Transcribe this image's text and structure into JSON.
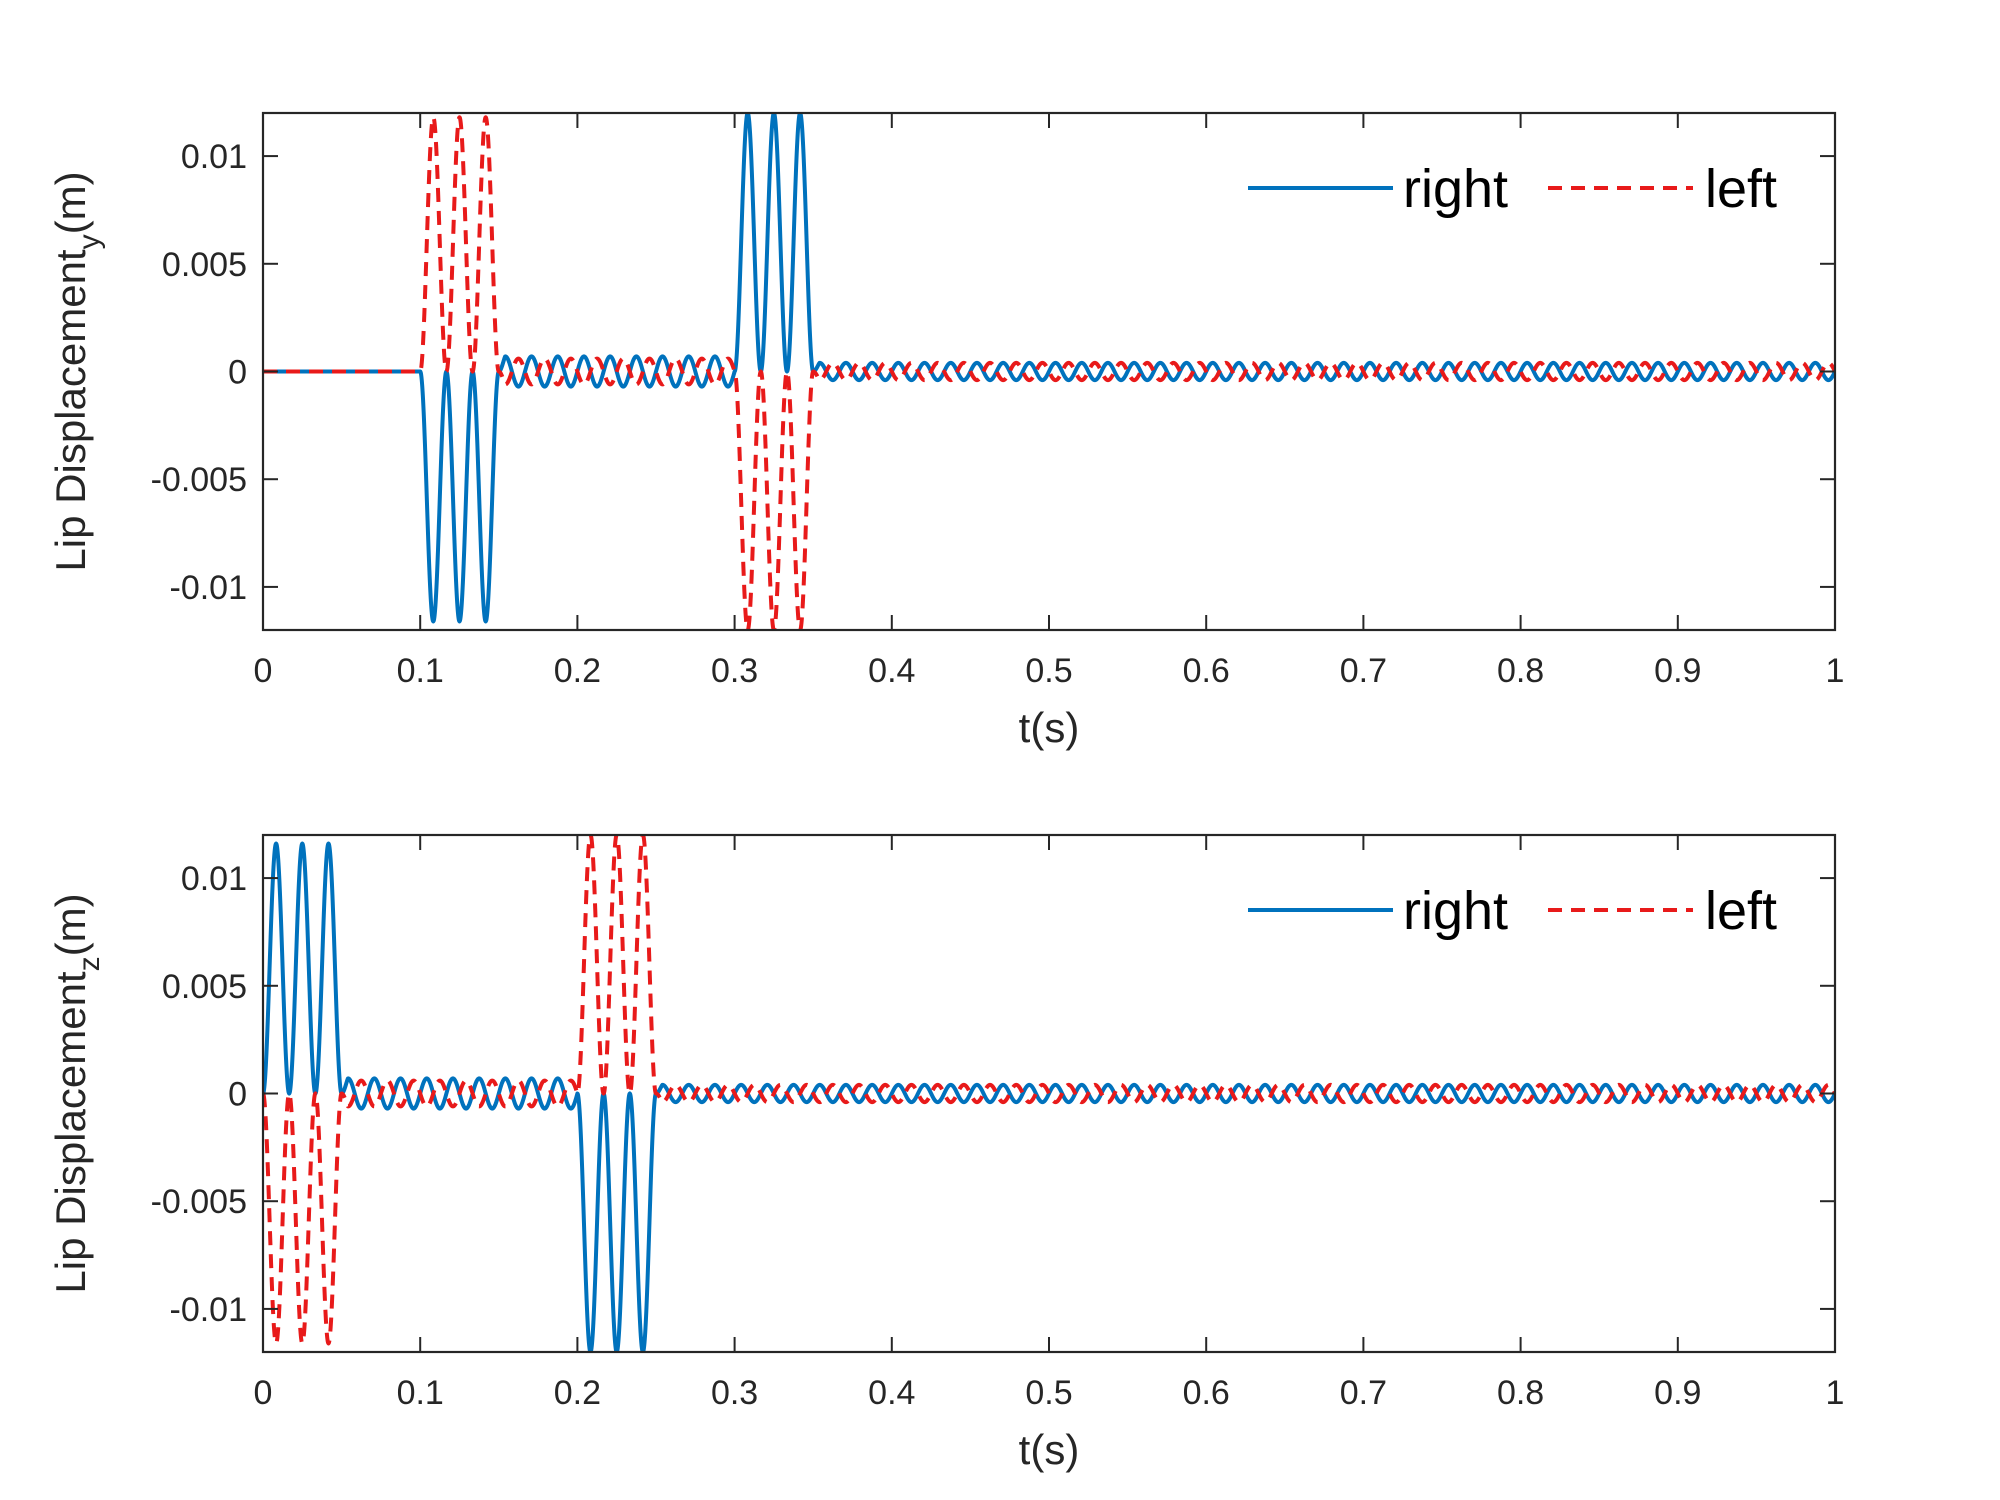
{
  "chart_data": [
    {
      "type": "line",
      "xlabel": "t(s)",
      "ylabel_main": "Lip Displacement",
      "ylabel_sub": "y",
      "ylabel_unit": "(m)",
      "xlim": [
        0,
        1
      ],
      "ylim": [
        -0.012,
        0.012
      ],
      "xticks": [
        0,
        0.1,
        0.2,
        0.3,
        0.4,
        0.5,
        0.6,
        0.7,
        0.8,
        0.9,
        1
      ],
      "xtick_labels": [
        "0",
        "0.1",
        "0.2",
        "0.3",
        "0.4",
        "0.5",
        "0.6",
        "0.7",
        "0.8",
        "0.9",
        "1"
      ],
      "yticks": [
        -0.01,
        -0.005,
        0,
        0.005,
        0.01
      ],
      "ytick_labels": [
        "-0.01",
        "-0.005",
        "0",
        "0.005",
        "0.01"
      ],
      "grid": false,
      "legend": {
        "position": "top-right",
        "orientation": "horizontal"
      },
      "series": [
        {
          "name": "right",
          "color": "#0072BD",
          "style": "solid",
          "segments": [
            {
              "t": [
                0,
                0.1
              ],
              "kind": "flat",
              "value": 0
            },
            {
              "t": [
                0.1,
                0.15
              ],
              "kind": "burst",
              "sign": -1,
              "cycles": 3,
              "amplitude": 0.0116
            },
            {
              "t": [
                0.15,
                0.3
              ],
              "kind": "oscillation",
              "freq_hz": 60,
              "amplitude": 0.0007,
              "phase_cycles": 0
            },
            {
              "t": [
                0.3,
                0.35
              ],
              "kind": "burst",
              "sign": 1,
              "cycles": 3,
              "amplitude": 0.012
            },
            {
              "t": [
                0.35,
                1.0
              ],
              "kind": "oscillation",
              "freq_hz": 60,
              "amplitude": 0.0004,
              "phase_cycles": 0
            }
          ]
        },
        {
          "name": "left",
          "color": "#E81A1A",
          "style": "dashed",
          "segments": [
            {
              "t": [
                0,
                0.1
              ],
              "kind": "flat",
              "value": 0
            },
            {
              "t": [
                0.1,
                0.15
              ],
              "kind": "burst",
              "sign": 1,
              "cycles": 3,
              "amplitude": 0.0118
            },
            {
              "t": [
                0.15,
                0.3
              ],
              "kind": "oscillation",
              "freq_hz": 60,
              "amplitude": 0.0006,
              "phase_cycles": 0.5
            },
            {
              "t": [
                0.3,
                0.35
              ],
              "kind": "burst",
              "sign": -1,
              "cycles": 3,
              "amplitude": 0.012
            },
            {
              "t": [
                0.35,
                1.0
              ],
              "kind": "oscillation",
              "freq_hz": 60,
              "amplitude": 0.0004,
              "phase_cycles": 0.5
            }
          ]
        }
      ]
    },
    {
      "type": "line",
      "xlabel": "t(s)",
      "ylabel_main": "Lip Displacement",
      "ylabel_sub": "z",
      "ylabel_unit": "(m)",
      "xlim": [
        0,
        1
      ],
      "ylim": [
        -0.012,
        0.012
      ],
      "xticks": [
        0,
        0.1,
        0.2,
        0.3,
        0.4,
        0.5,
        0.6,
        0.7,
        0.8,
        0.9,
        1
      ],
      "xtick_labels": [
        "0",
        "0.1",
        "0.2",
        "0.3",
        "0.4",
        "0.5",
        "0.6",
        "0.7",
        "0.8",
        "0.9",
        "1"
      ],
      "yticks": [
        -0.01,
        -0.005,
        0,
        0.005,
        0.01
      ],
      "ytick_labels": [
        "-0.01",
        "-0.005",
        "0",
        "0.005",
        "0.01"
      ],
      "grid": false,
      "legend": {
        "position": "top-right",
        "orientation": "horizontal"
      },
      "series": [
        {
          "name": "right",
          "color": "#0072BD",
          "style": "solid",
          "segments": [
            {
              "t": [
                0,
                0.05
              ],
              "kind": "burst",
              "sign": 1,
              "cycles": 3,
              "amplitude": 0.0116
            },
            {
              "t": [
                0.05,
                0.2
              ],
              "kind": "oscillation",
              "freq_hz": 60,
              "amplitude": 0.0007,
              "phase_cycles": 0
            },
            {
              "t": [
                0.2,
                0.25
              ],
              "kind": "burst",
              "sign": -1,
              "cycles": 3,
              "amplitude": 0.012
            },
            {
              "t": [
                0.25,
                1.0
              ],
              "kind": "oscillation",
              "freq_hz": 60,
              "amplitude": 0.0004,
              "phase_cycles": 0
            }
          ]
        },
        {
          "name": "left",
          "color": "#E81A1A",
          "style": "dashed",
          "segments": [
            {
              "t": [
                0,
                0.05
              ],
              "kind": "burst",
              "sign": -1,
              "cycles": 3,
              "amplitude": 0.0116
            },
            {
              "t": [
                0.05,
                0.2
              ],
              "kind": "oscillation",
              "freq_hz": 60,
              "amplitude": 0.0006,
              "phase_cycles": 0.5
            },
            {
              "t": [
                0.2,
                0.25
              ],
              "kind": "burst",
              "sign": 1,
              "cycles": 3,
              "amplitude": 0.012
            },
            {
              "t": [
                0.25,
                1.0
              ],
              "kind": "oscillation",
              "freq_hz": 60,
              "amplitude": 0.0004,
              "phase_cycles": 0.5
            }
          ]
        }
      ]
    }
  ]
}
